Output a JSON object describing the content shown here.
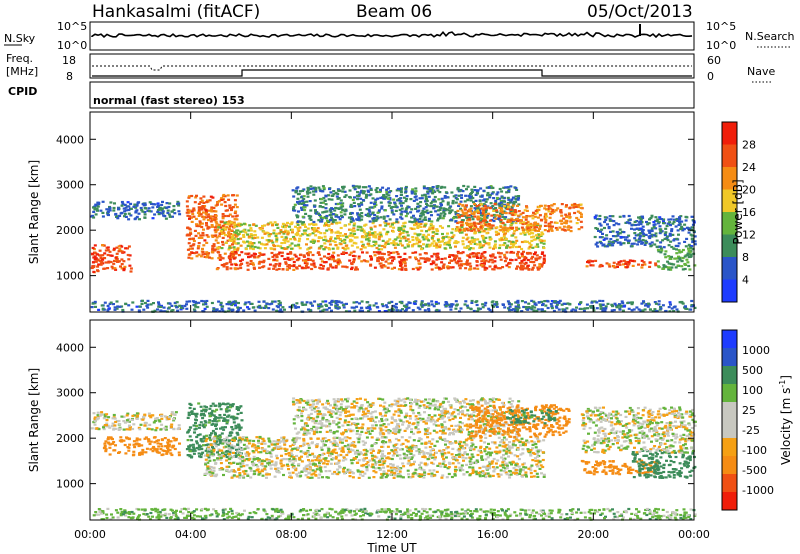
{
  "header": {
    "station": "Hankasalmi (fitACF)",
    "beam": "Beam 06",
    "date": "05/Oct/2013"
  },
  "noise_panel": {
    "left_label": "N.Sky",
    "right_label": "N.Search",
    "left_ticks": [
      "10^5",
      "10^0"
    ],
    "right_ticks": [
      "10^5",
      "10^0"
    ]
  },
  "freq_panel": {
    "left_label_line1": "Freq.",
    "left_label_line2": "[MHz]",
    "left_ticks": [
      "18",
      "8"
    ],
    "right_label": "Nave",
    "right_ticks": [
      "60",
      "0"
    ]
  },
  "cpid": {
    "label": "CPID",
    "mode": "normal (fast stereo) 153"
  },
  "x_axis": {
    "label": "Time UT",
    "ticks": [
      "00:00",
      "04:00",
      "08:00",
      "12:00",
      "16:00",
      "20:00",
      "00:00"
    ]
  },
  "colors": {
    "power_scale": [
      "#1e3cff",
      "#2a55c8",
      "#3c8c5a",
      "#64b43c",
      "#f0c828",
      "#f58c14",
      "#f05014",
      "#f01e0a"
    ],
    "velocity_scale": [
      "#1e3cff",
      "#2a55c8",
      "#3c8c5a",
      "#64b43c",
      "#c8c8c0",
      "#c8c8c0",
      "#f5a014",
      "#f58c14",
      "#f05014",
      "#f01e0a"
    ]
  },
  "chart_data": [
    {
      "type": "heatmap",
      "title": "Power",
      "ylabel": "Slant Range [km]",
      "xlabel": "",
      "ylim": [
        200,
        4600
      ],
      "y_ticks": [
        "1000",
        "2000",
        "3000",
        "4000"
      ],
      "colorbar_label": "Power [dB]",
      "colorbar_ticks": [
        "4",
        "8",
        "12",
        "16",
        "20",
        "24",
        "28"
      ],
      "x_hours": [
        0,
        24
      ],
      "bands": [
        {
          "t0": 0.0,
          "t1": 1.6,
          "r_mid": 1400,
          "r_half": 300,
          "level": 28
        },
        {
          "t0": 0.0,
          "t1": 3.5,
          "r_mid": 2450,
          "r_half": 200,
          "level": 6
        },
        {
          "t0": 3.8,
          "t1": 5.8,
          "r_mid": 2100,
          "r_half": 700,
          "level": 26
        },
        {
          "t0": 5.0,
          "t1": 18.0,
          "r_mid": 1350,
          "r_half": 200,
          "level": 28
        },
        {
          "t0": 5.0,
          "t1": 18.0,
          "r_mid": 1900,
          "r_half": 300,
          "level": 18
        },
        {
          "t0": 8.0,
          "t1": 17.0,
          "r_mid": 2600,
          "r_half": 400,
          "level": 8
        },
        {
          "t0": 14.5,
          "t1": 19.5,
          "r_mid": 2300,
          "r_half": 300,
          "level": 24
        },
        {
          "t0": 19.5,
          "t1": 22.5,
          "r_mid": 1280,
          "r_half": 80,
          "level": 28
        },
        {
          "t0": 20.0,
          "t1": 24.0,
          "r_mid": 2000,
          "r_half": 350,
          "level": 6
        },
        {
          "t0": 22.5,
          "t1": 24.0,
          "r_mid": 1400,
          "r_half": 250,
          "level": 12
        },
        {
          "t0": 0.0,
          "t1": 24.0,
          "r_mid": 350,
          "r_half": 120,
          "level": 6
        }
      ]
    },
    {
      "type": "heatmap",
      "title": "Velocity",
      "ylabel": "Slant Range [km]",
      "xlabel": "Time UT",
      "ylim": [
        200,
        4600
      ],
      "y_ticks": [
        "1000",
        "2000",
        "3000",
        "4000"
      ],
      "colorbar_label": "Velocity [m s",
      "colorbar_label_sup": "-1",
      "colorbar_label_end": "]",
      "colorbar_ticks": [
        "1000",
        "500",
        "100",
        "25",
        "-25",
        "-100",
        "-500",
        "-1000"
      ],
      "x_hours": [
        0,
        24
      ],
      "bands": [
        {
          "t0": 0.0,
          "t1": 3.5,
          "r_mid": 2400,
          "r_half": 200,
          "level": 0
        },
        {
          "t0": 0.5,
          "t1": 3.5,
          "r_mid": 1850,
          "r_half": 200,
          "level": -300
        },
        {
          "t0": 3.8,
          "t1": 6.0,
          "r_mid": 2200,
          "r_half": 600,
          "level": 150
        },
        {
          "t0": 4.5,
          "t1": 18.0,
          "r_mid": 1600,
          "r_half": 450,
          "level": 0
        },
        {
          "t0": 8.0,
          "t1": 17.0,
          "r_mid": 2500,
          "r_half": 400,
          "level": 0
        },
        {
          "t0": 15.0,
          "t1": 19.0,
          "r_mid": 2400,
          "r_half": 350,
          "level": -300
        },
        {
          "t0": 16.5,
          "t1": 18.5,
          "r_mid": 2500,
          "r_half": 150,
          "level": 150
        },
        {
          "t0": 19.5,
          "t1": 22.5,
          "r_mid": 1380,
          "r_half": 150,
          "level": -300
        },
        {
          "t0": 21.5,
          "t1": 24.0,
          "r_mid": 1450,
          "r_half": 300,
          "level": 300
        },
        {
          "t0": 19.5,
          "t1": 24.0,
          "r_mid": 2200,
          "r_half": 500,
          "level": 0
        },
        {
          "t0": 0.0,
          "t1": 24.0,
          "r_mid": 350,
          "r_half": 120,
          "level": 60
        }
      ]
    }
  ]
}
